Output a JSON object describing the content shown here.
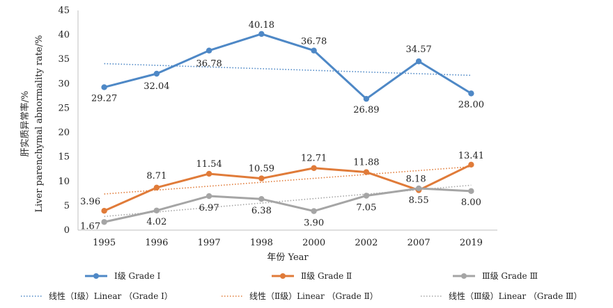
{
  "chart_data": {
    "type": "line",
    "categories": [
      "1995",
      "1996",
      "1997",
      "1998",
      "2000",
      "2002",
      "2007",
      "2019"
    ],
    "xlabel": "年份 Year",
    "ylabel": "Liver parenchymal abnormality rate/%",
    "ylabel_cn": "肝实质异常率/%",
    "ylim": [
      0,
      45
    ],
    "yticks": [
      "0",
      "5",
      "10",
      "15",
      "20",
      "25",
      "30",
      "35",
      "40",
      "45"
    ],
    "grid": false,
    "legend_position": "bottom",
    "series": [
      {
        "name": "Ⅰ级 Grade Ⅰ",
        "color": "#4e88c6",
        "values": [
          29.27,
          32.04,
          36.78,
          40.18,
          36.78,
          26.89,
          34.57,
          28.0
        ],
        "labels": [
          "29.27",
          "32.04",
          "36.78",
          "40.18",
          "36.78",
          "26.89",
          "34.57",
          "28.00"
        ],
        "trend_name": "线性（Ⅰ级）Linear （Grade Ⅰ）",
        "trend": [
          34.1,
          31.7
        ]
      },
      {
        "name": "Ⅱ级 Grade Ⅱ",
        "color": "#e07b39",
        "values": [
          3.96,
          8.71,
          11.54,
          10.59,
          12.71,
          11.88,
          8.18,
          13.41
        ],
        "labels": [
          "3.96",
          "8.71",
          "11.54",
          "10.59",
          "12.71",
          "11.88",
          "8.18",
          "13.41"
        ],
        "trend_name": "线性（Ⅱ级）Linear （Grade Ⅱ）",
        "trend": [
          7.4,
          13.0
        ]
      },
      {
        "name": "Ⅲ级 Grade Ⅲ",
        "color": "#a5a5a5",
        "values": [
          1.67,
          4.02,
          6.97,
          6.38,
          3.9,
          7.05,
          8.55,
          8.0
        ],
        "labels": [
          "1.67",
          "4.02",
          "6.97",
          "6.38",
          "3.90",
          "7.05",
          "8.55",
          "8.00"
        ],
        "trend_name": "线性（Ⅲ级）Linear （Grade Ⅲ）",
        "trend": [
          2.8,
          9.2
        ]
      }
    ]
  }
}
